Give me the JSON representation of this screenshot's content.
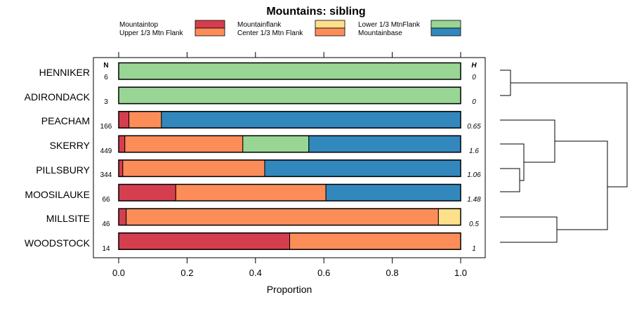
{
  "chart_data": {
    "type": "bar",
    "stacked": true,
    "orientation": "horizontal",
    "title": "Mountains: sibling",
    "xlabel": "Proportion",
    "ylabel": "",
    "xlim": [
      0,
      1
    ],
    "x_ticks": [
      "0.0",
      "0.2",
      "0.4",
      "0.6",
      "0.8",
      "1.0"
    ],
    "n_header": "N",
    "h_header": "H",
    "legend": [
      {
        "name": "Mountaintop",
        "color": "#d53e4f"
      },
      {
        "name": "Upper 1/3 Mtn Flank",
        "color": "#fc8d59"
      },
      {
        "name": "Mountainflank",
        "color": "#fee08b"
      },
      {
        "name": "Center 1/3 Mtn Flank",
        "color": "#fc8d59"
      },
      {
        "name": "Lower 1/3 MtnFlank",
        "color": "#99d594"
      },
      {
        "name": "Mountainbase",
        "color": "#3288bd"
      }
    ],
    "categories": [
      "HENNIKER",
      "ADIRONDACK",
      "PEACHAM",
      "SKERRY",
      "PILLSBURY",
      "MOOSILAUKE",
      "MILLSITE",
      "WOODSTOCK"
    ],
    "n_values": [
      "6",
      "3",
      "166",
      "449",
      "344",
      "66",
      "46",
      "14"
    ],
    "h_values": [
      "0",
      "0",
      "0.65",
      "1.6",
      "1.06",
      "1.48",
      "0.5",
      "1"
    ],
    "segments": [
      [
        {
          "color": "#99d594",
          "value": 1.0
        }
      ],
      [
        {
          "color": "#99d594",
          "value": 1.0
        }
      ],
      [
        {
          "color": "#d53e4f",
          "value": 0.03
        },
        {
          "color": "#fc8d59",
          "value": 0.095
        },
        {
          "color": "#3288bd",
          "value": 0.875
        }
      ],
      [
        {
          "color": "#d53e4f",
          "value": 0.018
        },
        {
          "color": "#fc8d59",
          "value": 0.345
        },
        {
          "color": "#99d594",
          "value": 0.193
        },
        {
          "color": "#3288bd",
          "value": 0.444
        }
      ],
      [
        {
          "color": "#d53e4f",
          "value": 0.012
        },
        {
          "color": "#fc8d59",
          "value": 0.415
        },
        {
          "color": "#3288bd",
          "value": 0.573
        }
      ],
      [
        {
          "color": "#d53e4f",
          "value": 0.167
        },
        {
          "color": "#fc8d59",
          "value": 0.439
        },
        {
          "color": "#3288bd",
          "value": 0.394
        }
      ],
      [
        {
          "color": "#d53e4f",
          "value": 0.022
        },
        {
          "color": "#fc8d59",
          "value": 0.913
        },
        {
          "color": "#fee08b",
          "value": 0.065
        }
      ],
      [
        {
          "color": "#d53e4f",
          "value": 0.5
        },
        {
          "color": "#fc8d59",
          "value": 0.5
        }
      ]
    ]
  }
}
